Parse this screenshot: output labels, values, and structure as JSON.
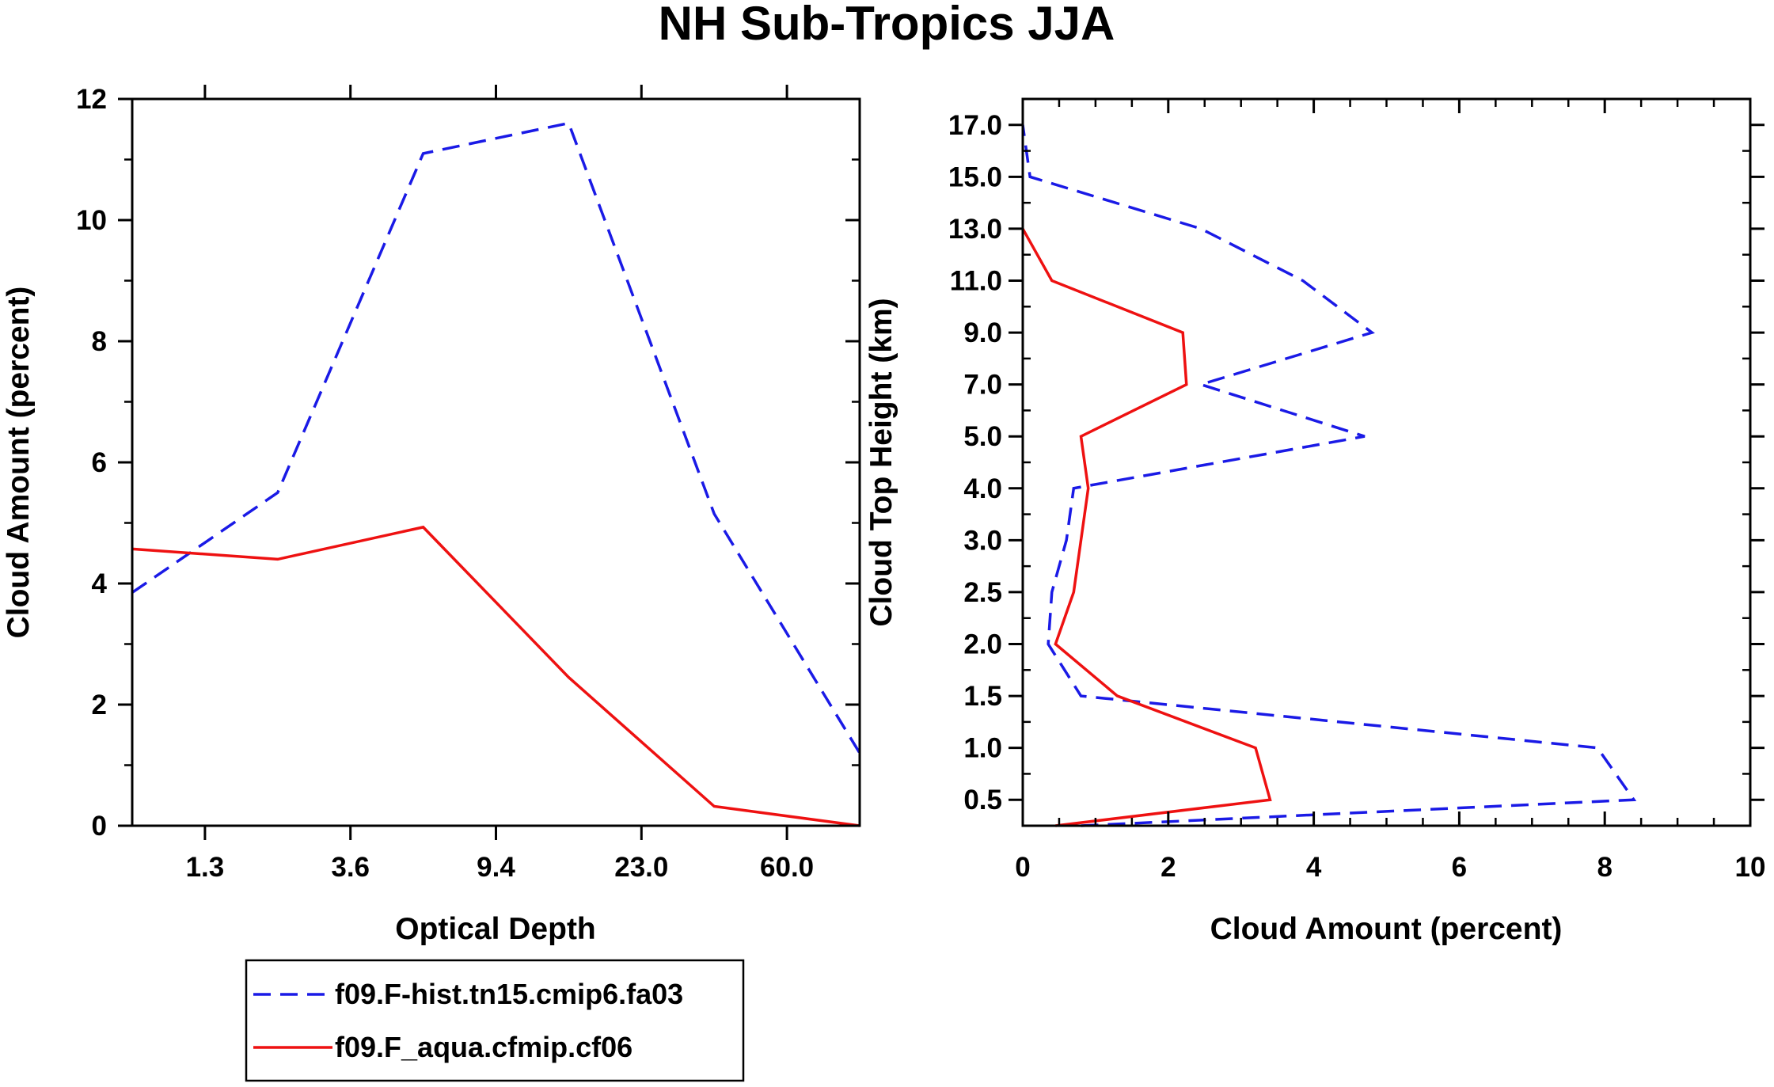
{
  "title": "NH Sub-Tropics JJA",
  "chart_data": [
    {
      "type": "line",
      "xlabel": "Optical Depth",
      "ylabel": "Cloud Amount (percent)",
      "x_tick_labels": [
        "1.3",
        "3.6",
        "9.4",
        "23.0",
        "60.0"
      ],
      "y_tick_labels": [
        "0",
        "2",
        "4",
        "6",
        "8",
        "10",
        "12"
      ],
      "ylim": [
        0,
        12
      ],
      "series": [
        {
          "name": "f09.F-hist.tn15.cmip6.fa03",
          "color": "#1a1ae6",
          "dash": "dashed",
          "values": [
            3.85,
            5.5,
            11.1,
            11.6,
            5.15,
            1.2
          ]
        },
        {
          "name": "f09.F_aqua.cfmip.cf06",
          "color": "#ee1111",
          "dash": "solid",
          "values": [
            4.57,
            4.4,
            4.93,
            2.45,
            0.32,
            0.0
          ]
        }
      ]
    },
    {
      "type": "line",
      "orientation": "vertical-profile",
      "xlabel": "Cloud Amount (percent)",
      "ylabel": "Cloud Top Height (km)",
      "xlim": [
        0,
        10
      ],
      "x_tick_labels": [
        "0",
        "2",
        "4",
        "6",
        "8",
        "10"
      ],
      "y_tick_labels": [
        "0.5",
        "1.0",
        "1.5",
        "2.0",
        "2.5",
        "3.0",
        "4.0",
        "5.0",
        "7.0",
        "9.0",
        "11.0",
        "13.0",
        "15.0",
        "17.0"
      ],
      "series": [
        {
          "name": "f09.F-hist.tn15.cmip6.fa03",
          "color": "#1a1ae6",
          "dash": "dashed",
          "values": [
            0.8,
            8.4,
            7.9,
            0.8,
            0.35,
            0.4,
            0.6,
            0.7,
            4.7,
            2.45,
            4.8,
            3.85,
            2.45,
            0.1,
            0.0
          ]
        },
        {
          "name": "f09.F_aqua.cfmip.cf06",
          "color": "#ee1111",
          "dash": "solid",
          "values": [
            0.45,
            3.4,
            3.2,
            1.3,
            0.45,
            0.7,
            0.8,
            0.9,
            0.8,
            2.25,
            2.2,
            0.4,
            0.0
          ]
        }
      ]
    }
  ],
  "legend": {
    "entries": [
      {
        "label": "f09.F-hist.tn15.cmip6.fa03",
        "color": "#1a1ae6",
        "dash": "dashed"
      },
      {
        "label": "f09.F_aqua.cfmip.cf06",
        "color": "#ee1111",
        "dash": "solid"
      }
    ]
  }
}
